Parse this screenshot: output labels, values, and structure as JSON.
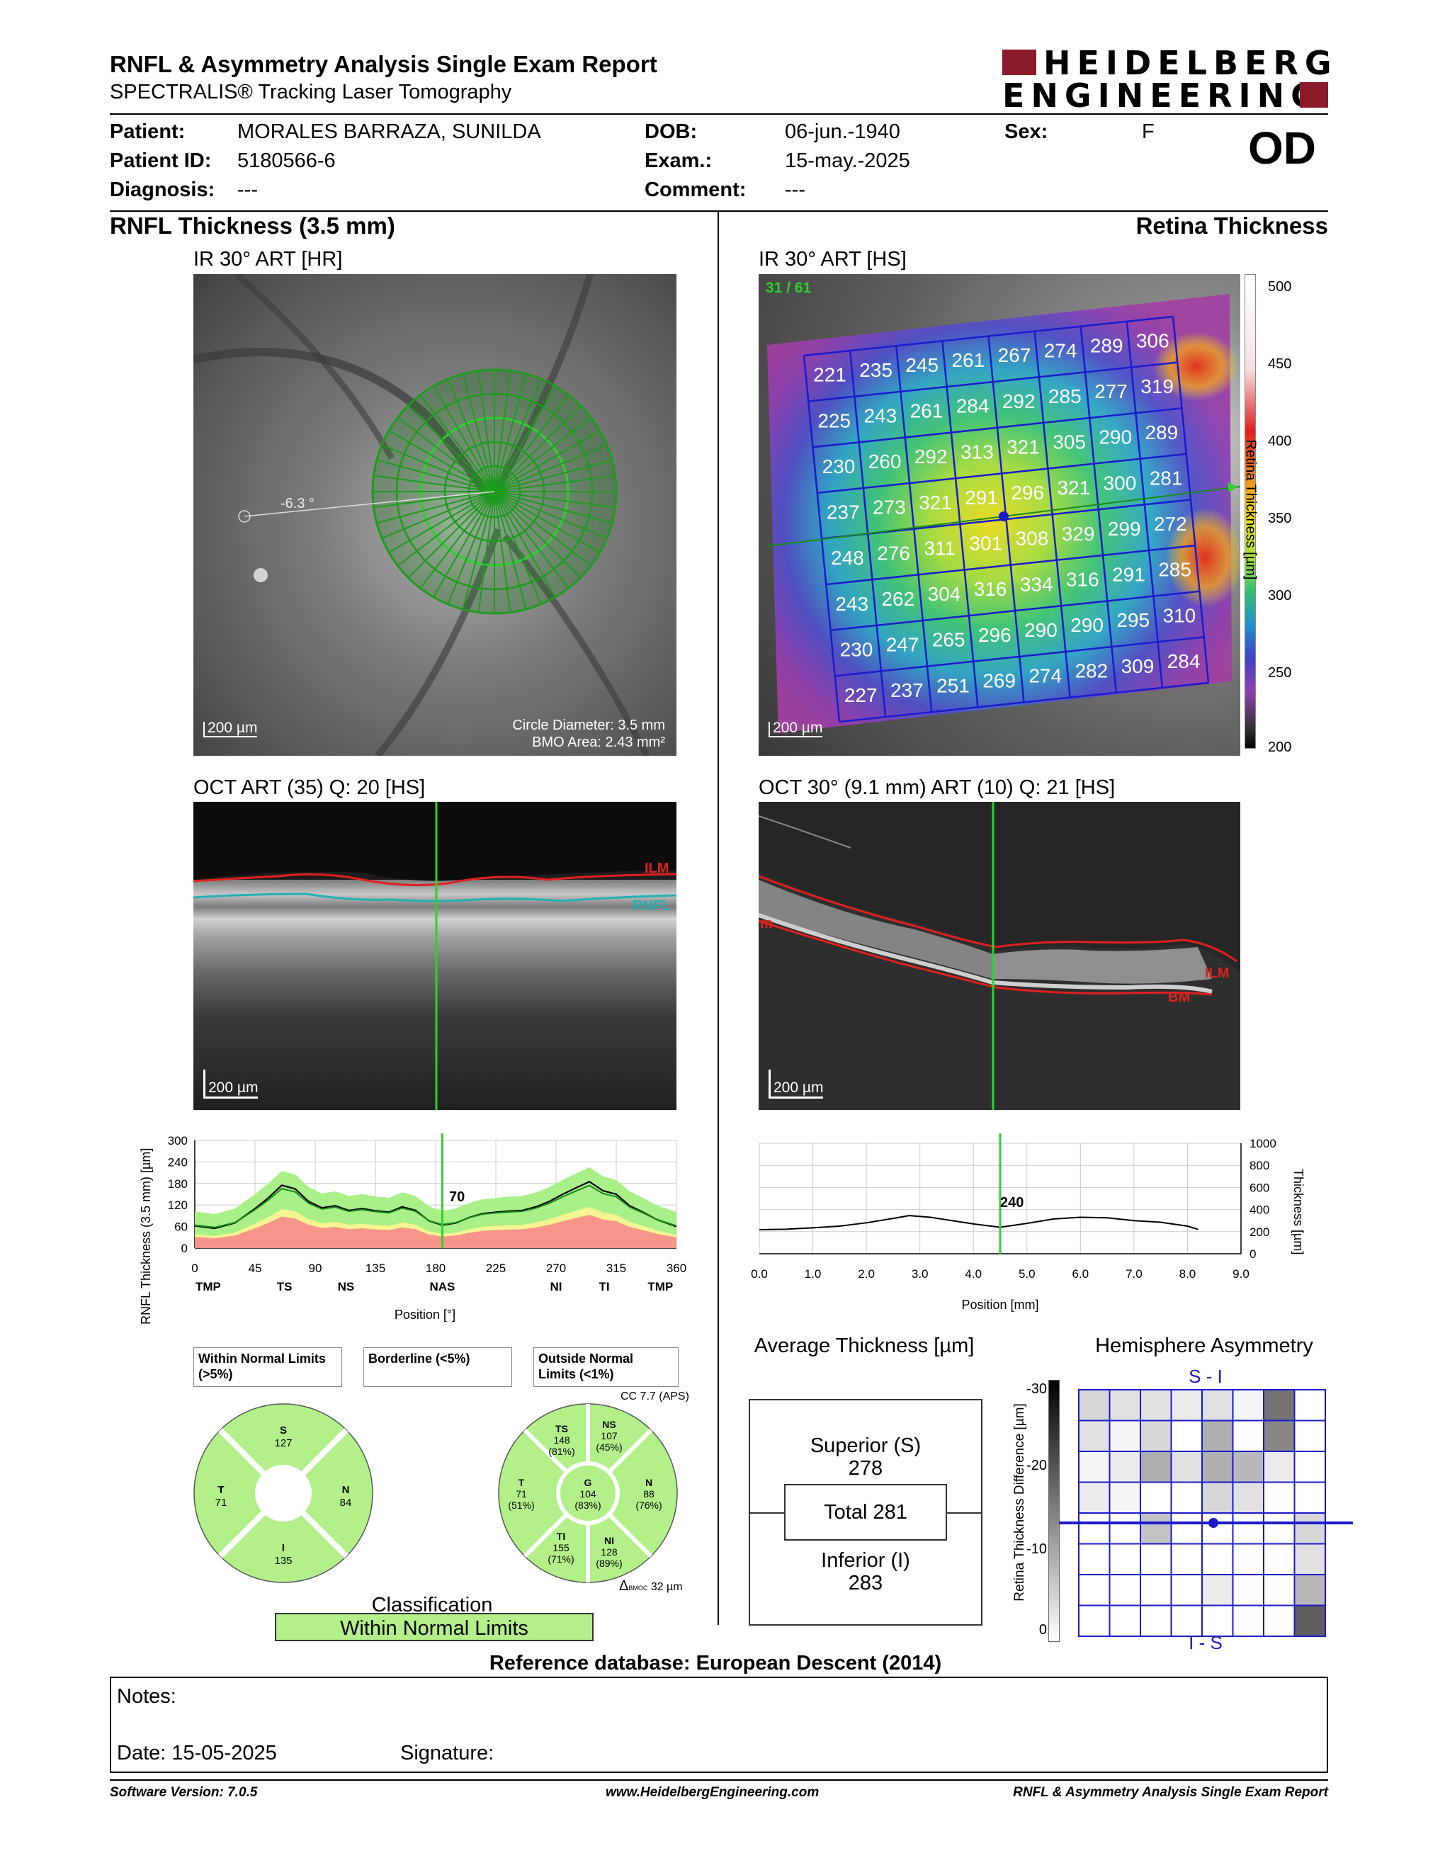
{
  "header": {
    "title": "RNFL & Asymmetry Analysis Single Exam Report",
    "subtitle": "SPECTRALIS® Tracking Laser Tomography",
    "logo_line1": "HEIDELBERG",
    "logo_line2": "ENGINEERING",
    "eye": "OD"
  },
  "patient": {
    "patient_label": "Patient:",
    "patient_value": "MORALES BARRAZA, SUNILDA",
    "id_label": "Patient ID:",
    "id_value": "5180566-6",
    "diagnosis_label": "Diagnosis:",
    "diagnosis_value": "---",
    "dob_label": "DOB:",
    "dob_value": "06-jun.-1940",
    "exam_label": "Exam.:",
    "exam_value": "15-may.-2025",
    "comment_label": "Comment:",
    "comment_value": "---",
    "sex_label": "Sex:",
    "sex_value": "F"
  },
  "left": {
    "section_title": "RNFL Thickness (3.5 mm)",
    "ir_caption": "IR 30° ART [HR]",
    "angle": "-6.3 °",
    "scale": "200 µm",
    "circle_diameter": "Circle Diameter: 3.5 mm",
    "bmo_area": "BMO Area: 2.43 mm²",
    "oct_caption": "OCT ART (35) Q: 20 [HS]",
    "oct_scale": "200 µm",
    "ilm": "ILM",
    "rnfl": "RNFL"
  },
  "right": {
    "section_title": "Retina Thickness",
    "ir_caption": "IR 30° ART [HS]",
    "scan_counter": "31 / 61",
    "scale": "200 µm",
    "colorbar_label": "Retina Thickness [µm]",
    "colorbar_ticks": [
      "500",
      "450",
      "400",
      "350",
      "300",
      "250",
      "200"
    ],
    "oct_caption": "OCT 30° (9.1 mm) ART (10) Q: 21 [HS]",
    "oct_scale": "200 µm",
    "ilm": "ILM",
    "bm": "BM",
    "m_label": "m"
  },
  "grid_values": [
    [
      221,
      235,
      245,
      261,
      267,
      274,
      289,
      306
    ],
    [
      225,
      243,
      261,
      284,
      292,
      285,
      277,
      319
    ],
    [
      230,
      260,
      292,
      313,
      321,
      305,
      290,
      289
    ],
    [
      237,
      273,
      321,
      291,
      296,
      321,
      300,
      281
    ],
    [
      248,
      276,
      311,
      301,
      308,
      329,
      299,
      272
    ],
    [
      243,
      262,
      304,
      316,
      334,
      316,
      291,
      285
    ],
    [
      230,
      247,
      265,
      296,
      290,
      290,
      295,
      310
    ],
    [
      227,
      237,
      251,
      269,
      274,
      282,
      309,
      284
    ]
  ],
  "chart_data": [
    {
      "type": "line",
      "ylabel": "RNFL Thickness (3.5 mm) [µm]",
      "xlabel": "Position [°]",
      "ylim": [
        0,
        300
      ],
      "xlim": [
        0,
        360
      ],
      "yticks": [
        "300",
        "240",
        "180",
        "120",
        "60",
        "0"
      ],
      "xticks": [
        "0",
        "45",
        "90",
        "135",
        "180",
        "225",
        "270",
        "315",
        "360"
      ],
      "sector_labels": [
        "TMP",
        "TS",
        "NS",
        "NAS",
        "NI",
        "TI",
        "TMP"
      ],
      "cursor_value": "70",
      "series": [
        {
          "values_x": [
            0,
            15,
            30,
            45,
            55,
            65,
            75,
            85,
            95,
            105,
            115,
            125,
            135,
            145,
            155,
            165,
            175,
            185,
            195,
            205,
            215,
            225,
            235,
            245,
            255,
            265,
            275,
            285,
            295,
            305,
            315,
            325,
            335,
            345,
            360
          ],
          "values_y": [
            62,
            55,
            70,
            110,
            140,
            175,
            165,
            130,
            112,
            118,
            105,
            110,
            104,
            100,
            115,
            105,
            76,
            64,
            70,
            85,
            96,
            100,
            103,
            105,
            115,
            130,
            150,
            168,
            185,
            160,
            150,
            118,
            100,
            80,
            60
          ]
        }
      ]
    },
    {
      "type": "line",
      "ylabel": "Thickness [µm]",
      "xlabel": "Position [mm]",
      "ylim": [
        0,
        1000
      ],
      "xlim": [
        0,
        9
      ],
      "yticks": [
        "1000",
        "800",
        "600",
        "400",
        "200",
        "0"
      ],
      "xticks": [
        "0.0",
        "1.0",
        "2.0",
        "3.0",
        "4.0",
        "5.0",
        "6.0",
        "7.0",
        "8.0",
        "9.0"
      ],
      "cursor_value": "240",
      "series": [
        {
          "values_x": [
            0,
            0.5,
            1,
            1.5,
            2,
            2.5,
            2.8,
            3.2,
            3.6,
            4,
            4.5,
            5,
            5.5,
            6,
            6.5,
            7,
            7.5,
            8,
            8.2
          ],
          "values_y": [
            218,
            222,
            235,
            250,
            280,
            320,
            345,
            330,
            300,
            270,
            240,
            275,
            315,
            330,
            325,
            300,
            285,
            250,
            220
          ]
        }
      ]
    }
  ],
  "legend": {
    "within": "Within Normal Limits (>5%)",
    "borderline": "Borderline (<5%)",
    "outside": "Outside Normal Limits (<1%)",
    "within_color": "#a8f087",
    "borderline_color": "#f5f591",
    "outside_color": "#f7958a"
  },
  "quad": {
    "S_label": "S",
    "S_val": "127",
    "T_label": "T",
    "T_val": "71",
    "N_label": "N",
    "N_val": "84",
    "I_label": "I",
    "I_val": "135"
  },
  "sector": {
    "cc": "CC 7.7 (APS)",
    "TS_label": "TS",
    "TS_val": "148",
    "TS_pct": "(81%)",
    "NS_label": "NS",
    "NS_val": "107",
    "NS_pct": "(45%)",
    "T_label": "T",
    "T_val": "71",
    "T_pct": "(51%)",
    "G_label": "G",
    "G_val": "104",
    "G_pct": "(83%)",
    "N_label": "N",
    "N_val": "88",
    "N_pct": "(76%)",
    "TI_label": "TI",
    "TI_val": "155",
    "TI_pct": "(71%)",
    "NI_label": "NI",
    "NI_val": "128",
    "NI_pct": "(89%)",
    "bmoc_symbol": "Δ",
    "bmoc_sub": "BMOC",
    "bmoc_val": "32 µm"
  },
  "classification": {
    "title": "Classification",
    "value": "Within Normal Limits"
  },
  "average": {
    "title": "Average Thickness [µm]",
    "superior_label": "Superior (S)",
    "superior_val": "278",
    "total": "Total 281",
    "inferior_label": "Inferior (I)",
    "inferior_val": "283"
  },
  "asymmetry": {
    "title": "Hemisphere Asymmetry",
    "top_label": "S - I",
    "bottom_label": "I - S",
    "axis_label": "Retina Thickness Difference [µm]",
    "ticks": [
      "-30",
      "-20",
      "-10",
      "0"
    ],
    "grid_shades": [
      [
        0.2,
        0.15,
        0.15,
        0.1,
        0.15,
        0.05,
        0.7,
        0
      ],
      [
        0.15,
        0.05,
        0.2,
        0,
        0.4,
        0,
        0.6,
        0
      ],
      [
        0.05,
        0.1,
        0.4,
        0.15,
        0.4,
        0.35,
        0.1,
        0
      ],
      [
        0.1,
        0.05,
        0,
        0,
        0.2,
        0.15,
        0,
        0
      ],
      [
        0,
        0,
        0.3,
        0,
        0,
        0,
        0,
        0.2
      ],
      [
        0,
        0,
        0,
        0,
        0,
        0,
        0,
        0.15
      ],
      [
        0,
        0,
        0,
        0,
        0.1,
        0,
        0,
        0.35
      ],
      [
        0,
        0,
        0,
        0,
        0,
        0,
        0,
        0.8
      ]
    ]
  },
  "footer": {
    "reference": "Reference database: European Descent (2014)",
    "notes_label": "Notes:",
    "date": "Date: 15-05-2025",
    "signature": "Signature:",
    "software": "Software Version: 7.0.5",
    "website": "www.HeidelbergEngineering.com",
    "report_name": "RNFL & Asymmetry Analysis Single Exam Report"
  }
}
